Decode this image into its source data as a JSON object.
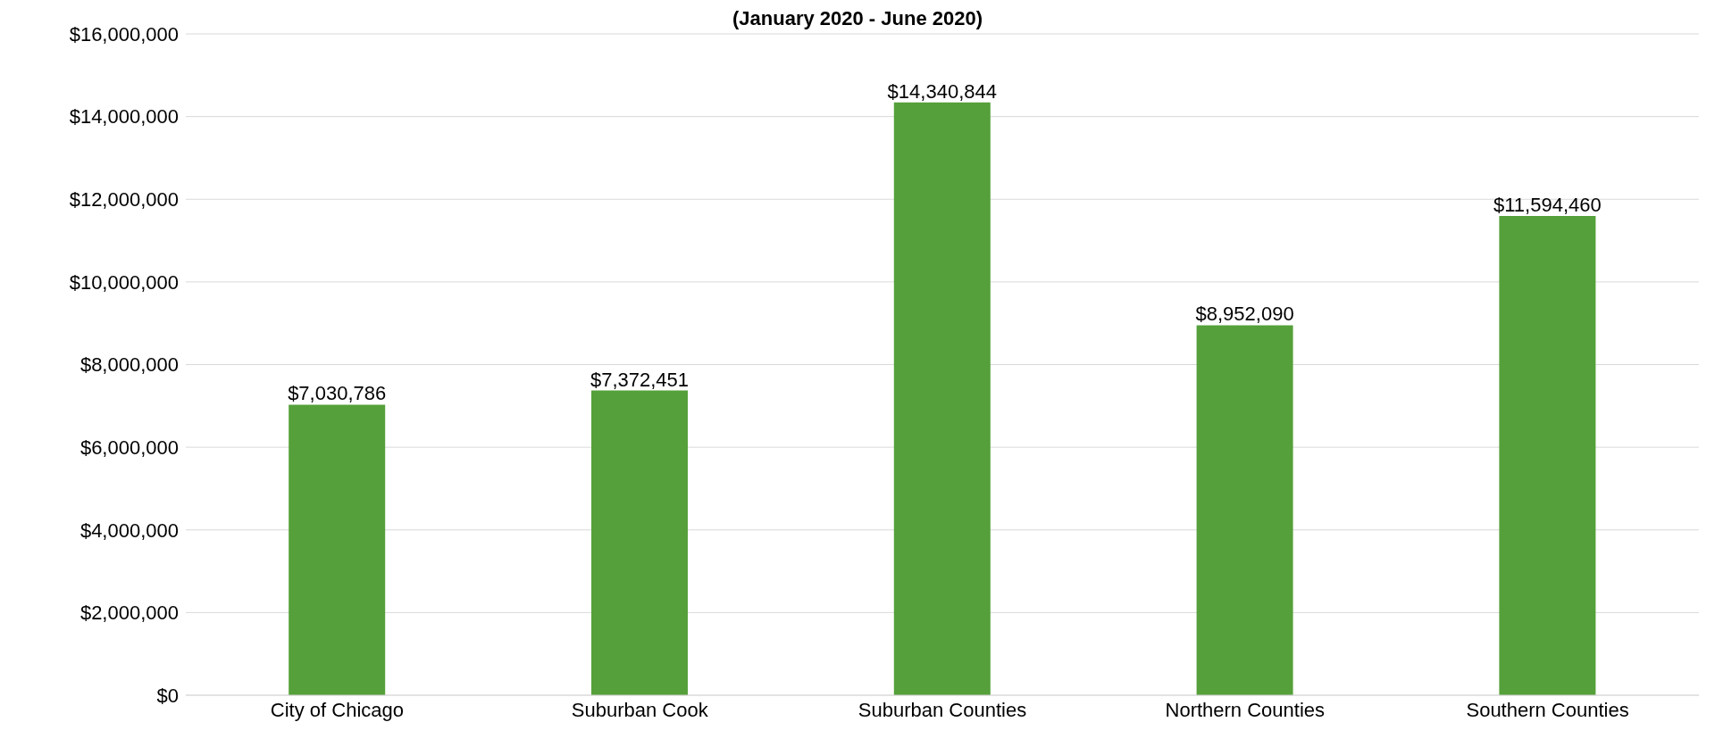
{
  "chart_data": {
    "type": "bar",
    "title": "(January 2020 - June 2020)",
    "categories": [
      "City of Chicago",
      "Suburban Cook",
      "Suburban Counties",
      "Northern Counties",
      "Southern Counties"
    ],
    "values": [
      7030786,
      7372451,
      14340844,
      8952090,
      11594460
    ],
    "color": "#55a03a",
    "ylim": [
      0,
      16000000
    ],
    "yticks": [
      {
        "value": 0,
        "label": "$0"
      },
      {
        "value": 2000000,
        "label": "$2,000,000"
      },
      {
        "value": 4000000,
        "label": "$4,000,000"
      },
      {
        "value": 6000000,
        "label": "$6,000,000"
      },
      {
        "value": 8000000,
        "label": "$8,000,000"
      },
      {
        "value": 10000000,
        "label": "$10,000,000"
      },
      {
        "value": 12000000,
        "label": "$12,000,000"
      },
      {
        "value": 14000000,
        "label": "$14,000,000"
      },
      {
        "value": 16000000,
        "label": "$16,000,000"
      }
    ],
    "value_labels": [
      "$7,030,786",
      "$7,372,451",
      "$14,340,844",
      "$8,952,090",
      "$11,594,460"
    ],
    "grid": "y"
  }
}
